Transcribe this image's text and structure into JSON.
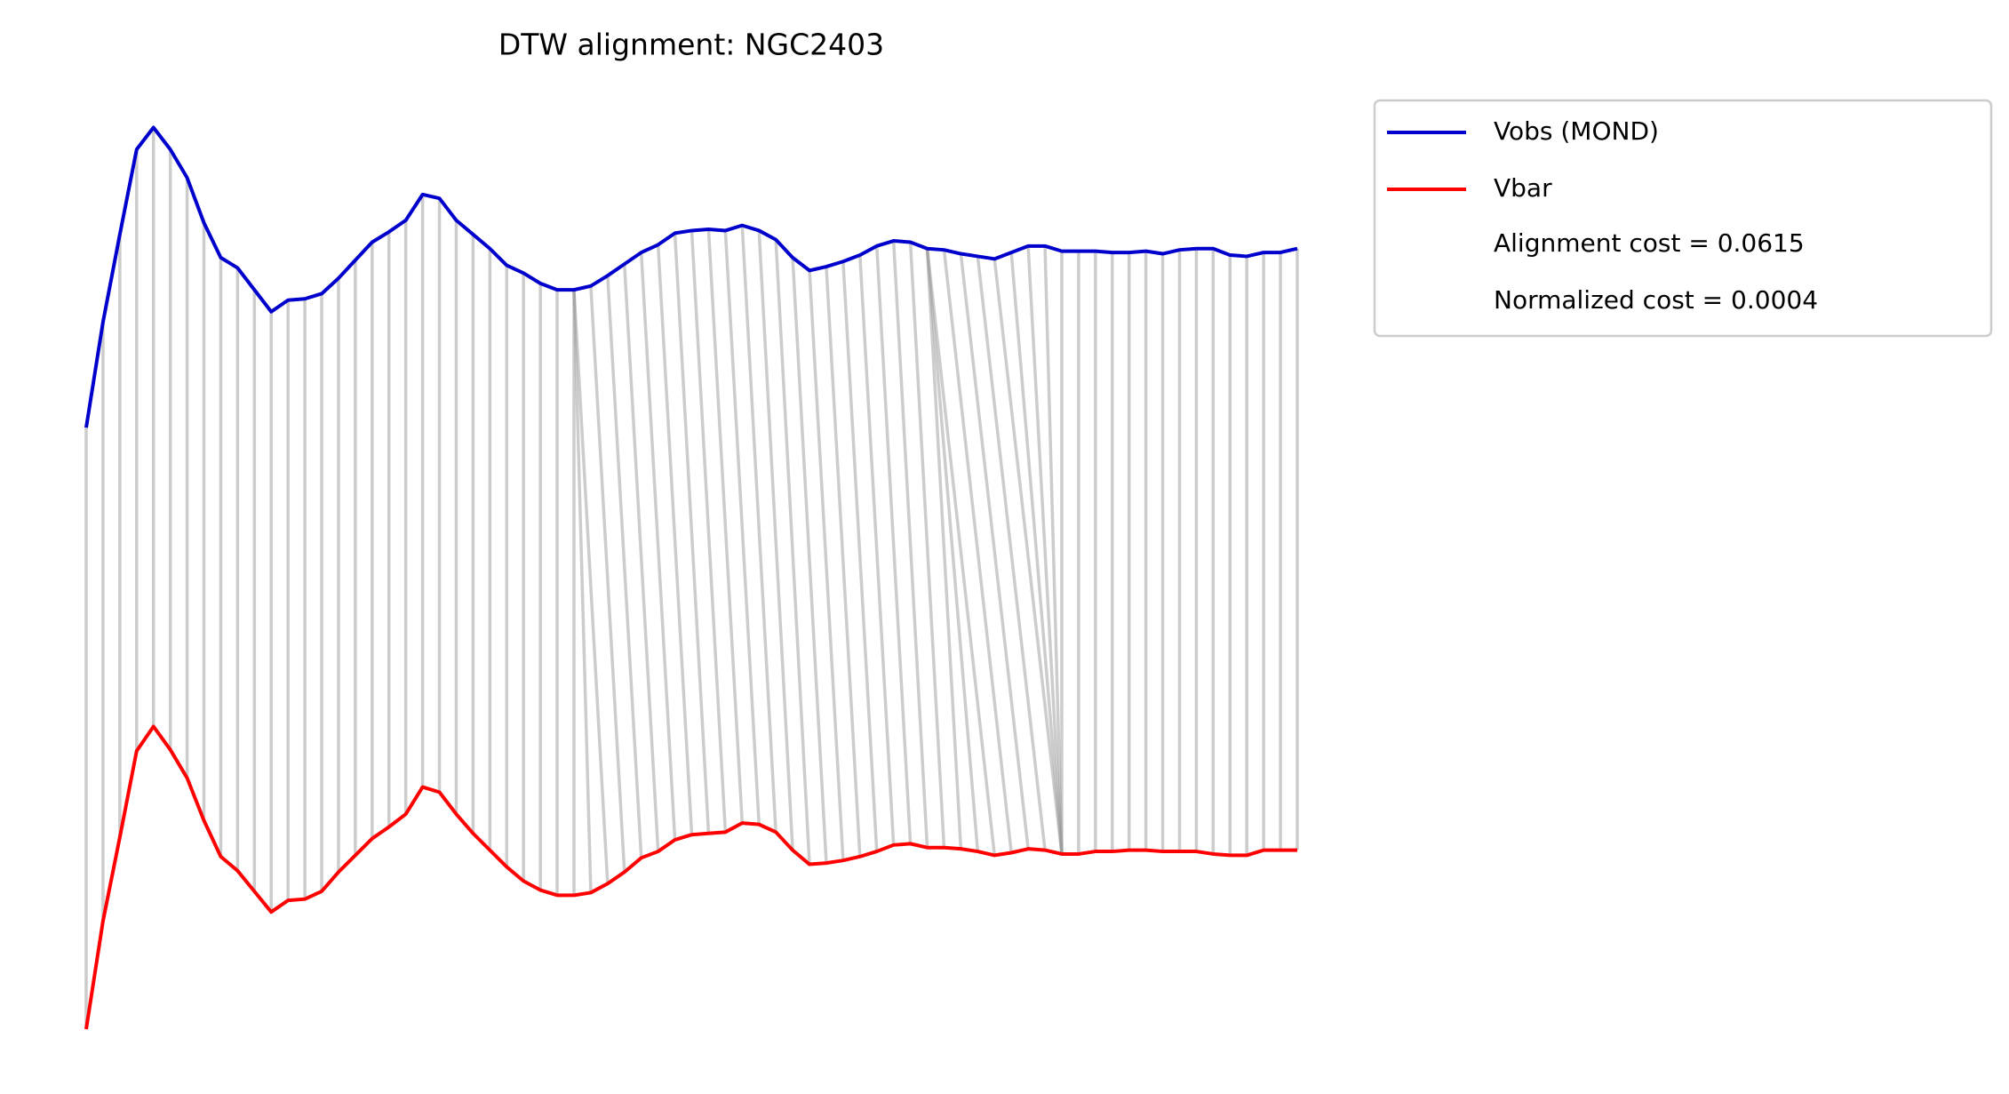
{
  "chart_data": {
    "type": "dtw",
    "title": "DTW alignment: NGC2403",
    "ylim": [
      0,
      850
    ],
    "series": [
      {
        "name": "Vobs (MOND)",
        "color": "#0000cc",
        "values": [
          518,
          600,
          668,
          734,
          751,
          734,
          712,
          677,
          650,
          642,
          625,
          608,
          617,
          618,
          622,
          634,
          648,
          662,
          670,
          679,
          699,
          696,
          679,
          668,
          657,
          644,
          638,
          630,
          625,
          625,
          628,
          636,
          645,
          654,
          660,
          669,
          671,
          672,
          671,
          675,
          671,
          664,
          650,
          640,
          643,
          647,
          652,
          659,
          663,
          662,
          657,
          656,
          653,
          651,
          649,
          654,
          659,
          659,
          655,
          655,
          655,
          654,
          654,
          655,
          653,
          656,
          657,
          657,
          652,
          651,
          654,
          654,
          657
        ]
      },
      {
        "name": "Vbar",
        "color": "#ff0000",
        "values": [
          51,
          135,
          200,
          267,
          286,
          268,
          246,
          213,
          185,
          174,
          158,
          142,
          151,
          152,
          158,
          173,
          186,
          199,
          208,
          218,
          239,
          235,
          218,
          203,
          190,
          177,
          166,
          159,
          155,
          155,
          157,
          164,
          173,
          184,
          189,
          198,
          202,
          203,
          204,
          211,
          210,
          204,
          190,
          179,
          180,
          182,
          185,
          189,
          194,
          195,
          192,
          192,
          191,
          189,
          186,
          188,
          191,
          190,
          187,
          187,
          189,
          189,
          190,
          190,
          189,
          189,
          189,
          187,
          186,
          186,
          190,
          190,
          190
        ]
      }
    ],
    "alignment": [
      [
        0,
        0
      ],
      [
        1,
        1
      ],
      [
        2,
        2
      ],
      [
        3,
        3
      ],
      [
        4,
        4
      ],
      [
        5,
        5
      ],
      [
        6,
        6
      ],
      [
        7,
        7
      ],
      [
        8,
        8
      ],
      [
        9,
        9
      ],
      [
        10,
        10
      ],
      [
        11,
        11
      ],
      [
        12,
        12
      ],
      [
        13,
        13
      ],
      [
        14,
        14
      ],
      [
        15,
        15
      ],
      [
        16,
        16
      ],
      [
        17,
        17
      ],
      [
        18,
        18
      ],
      [
        19,
        19
      ],
      [
        20,
        20
      ],
      [
        21,
        21
      ],
      [
        22,
        22
      ],
      [
        23,
        23
      ],
      [
        24,
        24
      ],
      [
        25,
        25
      ],
      [
        26,
        26
      ],
      [
        27,
        27
      ],
      [
        28,
        28
      ],
      [
        29,
        29
      ],
      [
        29,
        30
      ],
      [
        29,
        31
      ],
      [
        30,
        32
      ],
      [
        31,
        33
      ],
      [
        32,
        34
      ],
      [
        33,
        35
      ],
      [
        34,
        36
      ],
      [
        35,
        37
      ],
      [
        36,
        38
      ],
      [
        37,
        39
      ],
      [
        38,
        40
      ],
      [
        39,
        41
      ],
      [
        40,
        42
      ],
      [
        41,
        43
      ],
      [
        42,
        44
      ],
      [
        43,
        45
      ],
      [
        44,
        46
      ],
      [
        45,
        47
      ],
      [
        46,
        48
      ],
      [
        47,
        49
      ],
      [
        48,
        50
      ],
      [
        49,
        51
      ],
      [
        50,
        52
      ],
      [
        50,
        53
      ],
      [
        50,
        54
      ],
      [
        51,
        55
      ],
      [
        52,
        56
      ],
      [
        53,
        57
      ],
      [
        54,
        58
      ],
      [
        55,
        58
      ],
      [
        56,
        58
      ],
      [
        57,
        58
      ],
      [
        58,
        58
      ],
      [
        59,
        59
      ],
      [
        60,
        60
      ],
      [
        61,
        61
      ],
      [
        62,
        62
      ],
      [
        63,
        63
      ],
      [
        64,
        64
      ],
      [
        65,
        65
      ],
      [
        66,
        66
      ],
      [
        67,
        67
      ],
      [
        68,
        68
      ],
      [
        69,
        69
      ],
      [
        70,
        70
      ],
      [
        71,
        71
      ],
      [
        72,
        72
      ]
    ],
    "annotations": [
      "Alignment cost = 0.0615",
      "Normalized cost = 0.0004"
    ]
  }
}
